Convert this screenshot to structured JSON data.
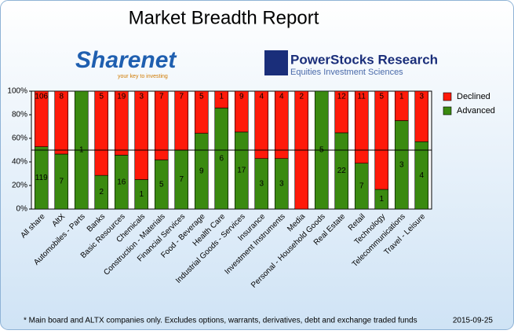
{
  "chart_data": {
    "type": "bar",
    "stacking": "percent",
    "title": "Market Breadth Report",
    "logos": [
      "Sharenet",
      "your key to investing",
      "PowerStocks Research",
      "Equities Investment Sciences"
    ],
    "categories": [
      "All share",
      "AltX",
      "Automobiles - Parts",
      "Banks",
      "Basic Resources",
      "Chemicals",
      "Construction - Materials",
      "Financial Services",
      "Food - Beverage",
      "Health Care",
      "Industrial Goods - Services",
      "Insurance",
      "Investment Instruments",
      "Media",
      "Personal - Household Goods",
      "Real Estate",
      "Retail",
      "Technology",
      "Telecommunications",
      "Travel - Leisure"
    ],
    "series": [
      {
        "name": "Advanced",
        "color": "#3a8a10",
        "values": [
          119,
          7,
          1,
          2,
          16,
          1,
          5,
          7,
          9,
          6,
          17,
          3,
          3,
          0,
          5,
          22,
          7,
          1,
          3,
          4
        ]
      },
      {
        "name": "Declined",
        "color": "#ff1a0a",
        "values": [
          106,
          8,
          0,
          5,
          19,
          3,
          7,
          7,
          5,
          1,
          9,
          4,
          4,
          2,
          0,
          12,
          11,
          5,
          1,
          3
        ]
      }
    ],
    "ylim": [
      0,
      100
    ],
    "yticks": [
      {
        "value": 0,
        "label": "0%"
      },
      {
        "value": 20,
        "label": "20%"
      },
      {
        "value": 40,
        "label": "40%"
      },
      {
        "value": 60,
        "label": "60%"
      },
      {
        "value": 80,
        "label": "80%"
      },
      {
        "value": 100,
        "label": "100%"
      }
    ],
    "reference_line": 50,
    "legend": "right",
    "footnote": "* Main board and ALTX companies only. Excludes options, warrants, derivatives, debt and exchange traded funds",
    "date": "2015-09-25"
  }
}
